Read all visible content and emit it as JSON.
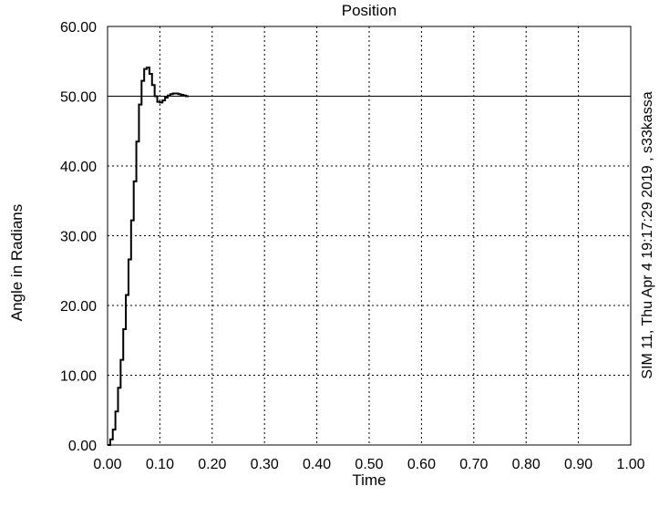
{
  "chart_data": {
    "type": "line",
    "title": "Position",
    "xlabel": "Time",
    "ylabel": "Angle in Radians",
    "side_note": "SIM 11, Thu Apr  4 19:17:29 2019 , s33kassa",
    "xlim": [
      0,
      1
    ],
    "ylim": [
      0,
      60
    ],
    "grid": "dotted",
    "x_ticks": [
      "0.00",
      "0.10",
      "0.20",
      "0.30",
      "0.40",
      "0.50",
      "0.60",
      "0.70",
      "0.80",
      "0.90",
      "1.00"
    ],
    "y_ticks": [
      "0.00",
      "10.00",
      "20.00",
      "30.00",
      "40.00",
      "50.00",
      "60.00"
    ],
    "reference_line": 50,
    "series": [
      {
        "style": "step",
        "x": [
          0.0,
          0.005,
          0.01,
          0.015,
          0.02,
          0.025,
          0.03,
          0.035,
          0.04,
          0.045,
          0.05,
          0.055,
          0.06,
          0.065,
          0.07,
          0.075,
          0.08,
          0.085,
          0.09,
          0.095,
          0.1,
          0.105,
          0.11,
          0.115,
          0.12,
          0.125,
          0.13,
          0.135,
          0.14,
          0.145,
          0.15,
          0.155
        ],
        "y": [
          0.0,
          0.8,
          2.2,
          4.8,
          8.2,
          12.2,
          16.6,
          21.5,
          26.6,
          32.2,
          37.8,
          43.5,
          48.8,
          52.2,
          53.9,
          54.1,
          53.2,
          51.6,
          50.0,
          49.2,
          49.1,
          49.4,
          49.8,
          50.1,
          50.3,
          50.4,
          50.4,
          50.3,
          50.2,
          50.1,
          50.0,
          50.0
        ]
      }
    ]
  }
}
